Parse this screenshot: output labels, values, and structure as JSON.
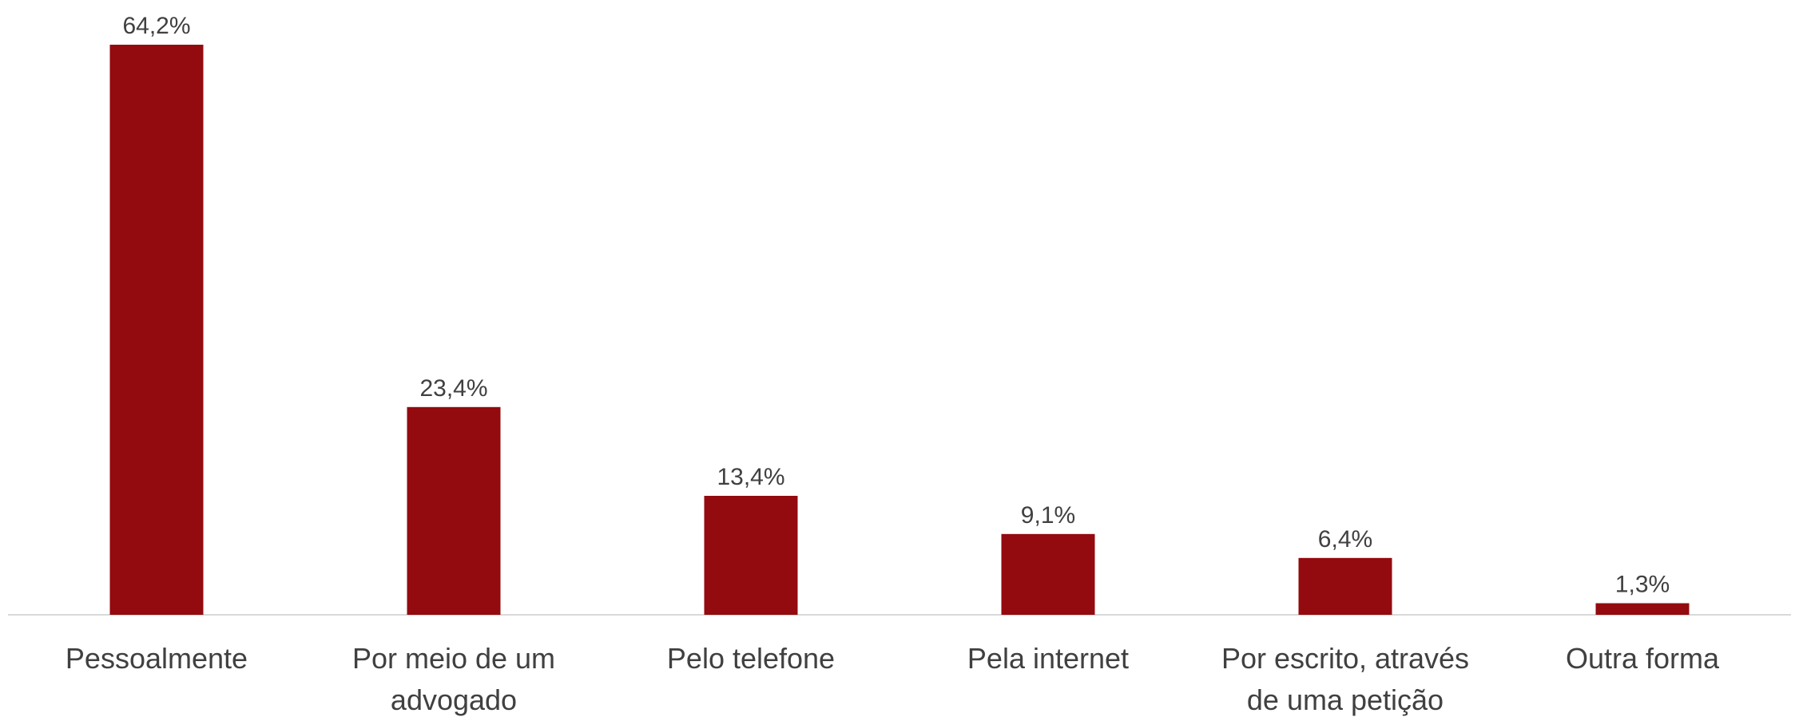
{
  "chart_data": {
    "type": "bar",
    "categories": [
      "Pessoalmente",
      "Por meio de um advogado",
      "Pelo telefone",
      "Pela internet",
      "Por escrito, através de uma petição",
      "Outra forma"
    ],
    "category_lines": [
      [
        "Pessoalmente"
      ],
      [
        "Por meio de um",
        "advogado"
      ],
      [
        "Pelo telefone"
      ],
      [
        "Pela internet"
      ],
      [
        "Por escrito, através",
        "de uma petição"
      ],
      [
        "Outra forma"
      ]
    ],
    "values": [
      64.2,
      23.4,
      13.4,
      9.1,
      6.4,
      1.3
    ],
    "value_labels": [
      "64,2%",
      "23,4%",
      "13,4%",
      "9,1%",
      "6,4%",
      "1,3%"
    ],
    "ylim": [
      0,
      70
    ],
    "grid": false,
    "legend": "none",
    "bar_color": "#930A0F",
    "axis_color": "#D9D9D9",
    "text_color": "#404040"
  }
}
